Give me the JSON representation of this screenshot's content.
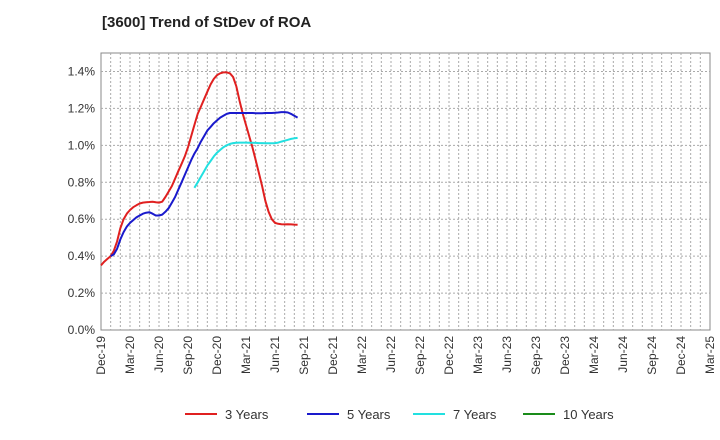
{
  "chart_data": {
    "type": "line",
    "title": "[3600]  Trend of StDev of ROA",
    "xlabel": "",
    "ylabel": "",
    "x_tick_labels": [
      "Dec-19",
      "Mar-20",
      "Jun-20",
      "Sep-20",
      "Dec-20",
      "Mar-21",
      "Jun-21",
      "Sep-21",
      "Dec-21",
      "Mar-22",
      "Jun-22",
      "Sep-22",
      "Dec-22",
      "Mar-23",
      "Jun-23",
      "Sep-23",
      "Dec-23",
      "Mar-24",
      "Jun-24",
      "Sep-24",
      "Dec-24",
      "Mar-25"
    ],
    "y_tick_labels": [
      "0.0%",
      "0.2%",
      "0.4%",
      "0.6%",
      "0.8%",
      "1.0%",
      "1.2%",
      "1.4%"
    ],
    "ylim": [
      0,
      1.5
    ],
    "y_unit": "%",
    "grid": true,
    "legend_position": "bottom",
    "series": [
      {
        "name": "3 Years",
        "color": "#e02020",
        "start": "Dec-19",
        "values": [
          0.35,
          0.37,
          0.385,
          0.4,
          0.43,
          0.48,
          0.55,
          0.6,
          0.63,
          0.65,
          0.665,
          0.675,
          0.685,
          0.69,
          0.692,
          0.693,
          0.695,
          0.692,
          0.69,
          0.695,
          0.72,
          0.75,
          0.78,
          0.82,
          0.86,
          0.9,
          0.94,
          0.99,
          1.05,
          1.11,
          1.17,
          1.21,
          1.25,
          1.29,
          1.33,
          1.36,
          1.38,
          1.39,
          1.395,
          1.395,
          1.39,
          1.37,
          1.32,
          1.24,
          1.17,
          1.11,
          1.05,
          0.99,
          0.92,
          0.85,
          0.78,
          0.7,
          0.64,
          0.6,
          0.58,
          0.575,
          0.573,
          0.572,
          0.573,
          0.572,
          0.571,
          0.57
        ]
      },
      {
        "name": "5 Years",
        "color": "#1a1acc",
        "start": "Dec-19",
        "values": [
          null,
          null,
          null,
          0.4,
          0.41,
          0.44,
          0.49,
          0.53,
          0.56,
          0.58,
          0.595,
          0.61,
          0.62,
          0.63,
          0.635,
          0.638,
          0.63,
          0.62,
          0.62,
          0.625,
          0.64,
          0.66,
          0.69,
          0.72,
          0.76,
          0.8,
          0.84,
          0.88,
          0.92,
          0.955,
          0.985,
          1.02,
          1.05,
          1.08,
          1.1,
          1.12,
          1.135,
          1.15,
          1.16,
          1.17,
          1.175,
          1.175,
          1.175,
          1.175,
          1.175,
          1.175,
          1.175,
          1.175,
          1.174,
          1.174,
          1.174,
          1.175,
          1.175,
          1.175,
          1.176,
          1.178,
          1.18,
          1.18,
          1.178,
          1.17,
          1.16,
          1.15
        ]
      },
      {
        "name": "7 Years",
        "color": "#22e0e0",
        "start": "Dec-19",
        "values": [
          null,
          null,
          null,
          null,
          null,
          null,
          null,
          null,
          null,
          null,
          null,
          null,
          null,
          null,
          null,
          null,
          null,
          null,
          null,
          null,
          null,
          null,
          null,
          null,
          null,
          null,
          null,
          null,
          null,
          0.77,
          0.8,
          0.83,
          0.86,
          0.89,
          0.915,
          0.94,
          0.96,
          0.975,
          0.99,
          1.0,
          1.008,
          1.012,
          1.014,
          1.015,
          1.015,
          1.015,
          1.014,
          1.014,
          1.013,
          1.012,
          1.012,
          1.011,
          1.011,
          1.011,
          1.012,
          1.015,
          1.02,
          1.025,
          1.03,
          1.035,
          1.038,
          1.04
        ]
      },
      {
        "name": "10 Years",
        "color": "#1a8c1a",
        "start": "Dec-19",
        "values": []
      }
    ]
  }
}
